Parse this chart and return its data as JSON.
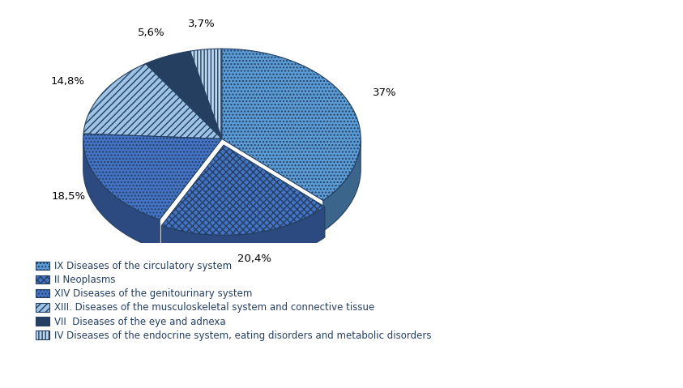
{
  "slices": [
    {
      "label": "IX Diseases of the circulatory system",
      "value": 37.0,
      "pct": "37%",
      "facecolor": "#5B9BD5",
      "hatch": "....",
      "edgecolor": "#243F60"
    },
    {
      "label": "II Neoplasms",
      "value": 20.4,
      "pct": "20,4%",
      "facecolor": "#4472C4",
      "hatch": "xxxx",
      "edgecolor": "#243F60"
    },
    {
      "label": "XIV Diseases of the genitourinary system",
      "value": 18.5,
      "pct": "18,5%",
      "facecolor": "#4472C4",
      "hatch": "....",
      "edgecolor": "#243F60"
    },
    {
      "label": "XIII. Diseases of the musculoskeletal system and connective tissue",
      "value": 14.8,
      "pct": "14,8%",
      "facecolor": "#9DC3E6",
      "hatch": "////",
      "edgecolor": "#243F60"
    },
    {
      "label": "VII  Diseases of the eye and adnexa",
      "value": 5.6,
      "pct": "5,6%",
      "facecolor": "#243F60",
      "hatch": "====",
      "edgecolor": "#243F60"
    },
    {
      "label": "IV Diseases of the endocrine system, eating disorders and metabolic disorders",
      "value": 3.7,
      "pct": "3,7%",
      "facecolor": "#BDD7EE",
      "hatch": "||||",
      "edgecolor": "#243F60"
    }
  ],
  "startangle": 90,
  "counterclock": false,
  "explode_idx": 1,
  "explode_amount": 0.07,
  "depth": 0.08,
  "background_color": "#FFFFFF",
  "label_color": "#243F60",
  "legend_fontsize": 8.5,
  "pct_fontsize": 9.5
}
